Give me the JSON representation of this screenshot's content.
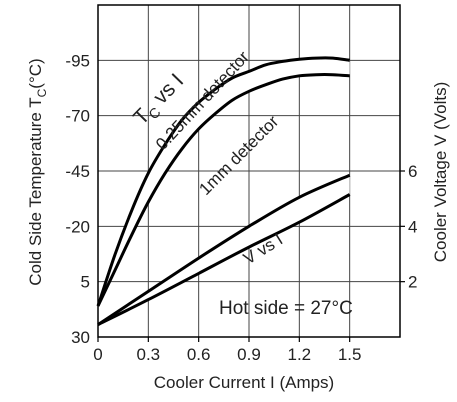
{
  "chart_data": {
    "type": "area",
    "xlabel": "Cooler Current  I (Amps)",
    "ylabel_left_pre": "Cold Side Temperature T",
    "ylabel_left_sub": "C",
    "ylabel_left_post": "(°C)",
    "ylabel_right": "Cooler Voltage V (Volts)",
    "xlim": [
      0,
      1.8
    ],
    "x_ticks": [
      0,
      0.3,
      0.6,
      0.9,
      1.2,
      1.5
    ],
    "x_tick_labels": [
      "0",
      "0.3",
      "0.6",
      "0.9",
      "1.2",
      "1.5"
    ],
    "y_left_ticks": [
      30,
      5,
      -20,
      -45,
      -70,
      -95
    ],
    "y_left_tick_labels": [
      "30",
      "5",
      "-20",
      "-45",
      "-70",
      "-95"
    ],
    "y_left_range_top_to_bottom": [
      -120,
      30
    ],
    "y_right_ticks": [
      2,
      4,
      6
    ],
    "y_right_tick_labels": [
      "2",
      "4",
      "6"
    ],
    "y_right_range": [
      0,
      12
    ],
    "grid": true,
    "series": [
      {
        "name": "TC vs I — 0.25mm detector",
        "axis": "left",
        "x": [
          0,
          0.1,
          0.2,
          0.3,
          0.4,
          0.5,
          0.6,
          0.7,
          0.8,
          0.9,
          1.0,
          1.1,
          1.2,
          1.3,
          1.4,
          1.5
        ],
        "y": [
          16,
          -7,
          -27,
          -44,
          -57,
          -68,
          -76,
          -82,
          -87,
          -90,
          -93,
          -94.5,
          -95.5,
          -96,
          -96,
          -95
        ]
      },
      {
        "name": "TC vs I — 1mm detector",
        "axis": "left",
        "x": [
          0,
          0.1,
          0.2,
          0.3,
          0.4,
          0.5,
          0.6,
          0.7,
          0.8,
          0.9,
          1.0,
          1.1,
          1.2,
          1.3,
          1.4,
          1.5
        ],
        "y": [
          16,
          0,
          -16,
          -31,
          -44,
          -55,
          -64,
          -71,
          -77,
          -81,
          -84,
          -86.5,
          -88,
          -88.5,
          -88.5,
          -88
        ]
      },
      {
        "name": "V vs I — upper",
        "axis": "right",
        "x": [
          0,
          0.3,
          0.6,
          0.9,
          1.2,
          1.5
        ],
        "y": [
          0.45,
          1.65,
          2.85,
          4.0,
          5.05,
          5.85
        ]
      },
      {
        "name": "V vs I — lower",
        "axis": "right",
        "x": [
          0,
          0.3,
          0.6,
          0.9,
          1.2,
          1.5
        ],
        "y": [
          0.45,
          1.35,
          2.3,
          3.25,
          4.15,
          5.15
        ]
      }
    ],
    "annotations": {
      "tc_prefix": "T",
      "tc_sub": "C",
      "tc_suffix": " vs I",
      "detector_thin": "0.25mm detector",
      "detector_thick": "1mm detector",
      "v_vs_i": "V vs I",
      "hot_side": "Hot side = 27°C"
    }
  }
}
